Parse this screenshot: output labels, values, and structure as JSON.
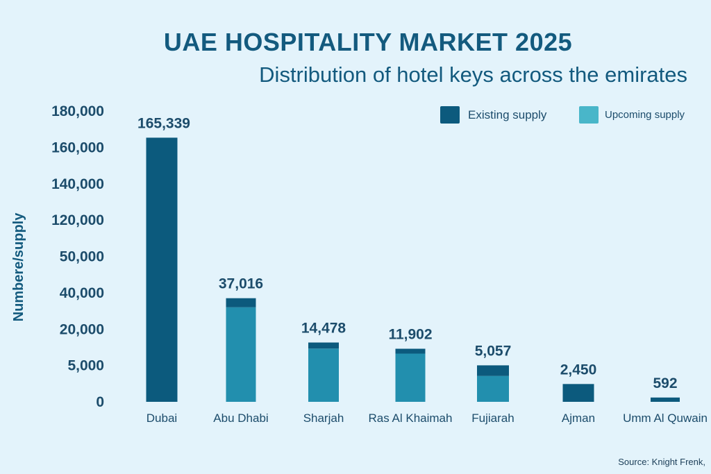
{
  "header": {
    "title": "UAE HOSPITALITY MARKET 2025",
    "subtitle": "Distribution of hotel keys across the emirates"
  },
  "source": "Source: Knight Frenk,",
  "colors": {
    "existing": "#0c5a7d",
    "upcoming": "#228fae",
    "legend_upcoming": "#49b6c9",
    "axis_text": "#1c4c6b"
  },
  "chart_data": {
    "type": "bar",
    "stacked": true,
    "ylabel": "Numbere/supply",
    "y_tick_labels": [
      "0",
      "5,000",
      "20,000",
      "40,000",
      "50,000",
      "120,000",
      "140,000",
      "160,000",
      "180,000"
    ],
    "categories": [
      "Dubai",
      "Abu Dhabi",
      "Sharjah",
      "Ras Al Khaimah",
      "Fujiarah",
      "Ajman",
      "Umm Al Quwain"
    ],
    "totals_labels": [
      "165,339",
      "37,016",
      "14,478",
      "11,902",
      "5,057",
      "2,450",
      "592"
    ],
    "series": [
      {
        "name": "Existing supply",
        "values": [
          165339,
          5000,
          2500,
          2000,
          1500,
          2450,
          592
        ]
      },
      {
        "name": "Upcoming supply",
        "values": [
          0,
          32016,
          11978,
          9902,
          3557,
          0,
          0
        ]
      }
    ],
    "legend_position": "top-right",
    "grid": false
  }
}
